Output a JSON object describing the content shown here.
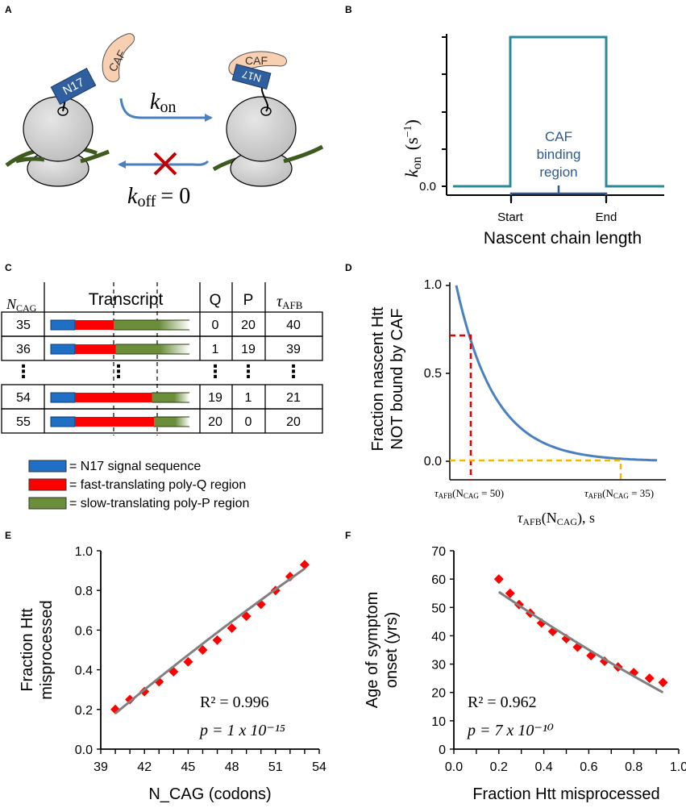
{
  "panels": {
    "A": "A",
    "B": "B",
    "C": "C",
    "D": "D",
    "E": "E",
    "F": "F"
  },
  "panel_a": {
    "n17": "N17",
    "caf": "CAF",
    "kon": "k",
    "kon_sub": "on",
    "koff": "k",
    "koff_sub": "off",
    "koff_eq": "= 0"
  },
  "panel_b": {
    "ylabel_k": "k",
    "ylabel_sub": "on",
    "ylabel_unit": "(s",
    "ylabel_exp": "−1",
    "ylabel_close": ")",
    "ytick": "0.0",
    "region": [
      "CAF",
      "binding",
      "region"
    ],
    "start": "Start",
    "end": "End",
    "xlabel": "Nascent chain length"
  },
  "panel_c": {
    "headers": {
      "n": "N",
      "n_sub": "CAG",
      "transcript": "Transcript",
      "q": "Q",
      "p": "P",
      "tau": "τ",
      "tau_sub": "AFB"
    },
    "rows": [
      {
        "n": "35",
        "q": "0",
        "p": "20",
        "t": "40"
      },
      {
        "n": "36",
        "q": "1",
        "p": "19",
        "t": "39"
      },
      {
        "n": "⋮",
        "q": "⋮",
        "p": "⋮",
        "t": "⋮"
      },
      {
        "n": "54",
        "q": "19",
        "p": "1",
        "t": "21"
      },
      {
        "n": "55",
        "q": "20",
        "p": "0",
        "t": "20"
      }
    ],
    "legend": [
      {
        "label": "= N17 signal sequence",
        "color": "#1f6fc5"
      },
      {
        "label": "= fast-translating poly-Q region",
        "color": "#ff0000"
      },
      {
        "label": "= slow-translating poly-P region",
        "color": "#6b8e3a"
      }
    ]
  },
  "panel_d": {
    "ylabel": [
      "Fraction nascent Htt",
      "NOT bound by CAF"
    ],
    "yticks": [
      "1.0",
      "0.5",
      "0.0"
    ],
    "xtick50": "τ",
    "xtick50_sub": "AFB",
    "xtick50_arg": "(N",
    "xtick50_argsub": "CAG",
    "xtick50_val": " = 50)",
    "xtick35_val": " = 35)",
    "xlabel": "τ",
    "xlabel_sub": "AFB",
    "xlabel_arg": "(N",
    "xlabel_argsub": "CAG",
    "xlabel_end": "), s"
  },
  "chart_data": [
    {
      "type": "scatter",
      "title": "",
      "xlabel": "N_CAG (codons)",
      "ylabel": "Fraction Htt misprocessed",
      "xlim": [
        39,
        54
      ],
      "ylim": [
        0,
        1
      ],
      "xticks": [
        "39",
        "42",
        "45",
        "48",
        "51",
        "54"
      ],
      "yticks": [
        "0.0",
        "0.2",
        "0.4",
        "0.6",
        "0.8",
        "1.0"
      ],
      "x": [
        40,
        41,
        42,
        43,
        44,
        45,
        46,
        47,
        48,
        49,
        50,
        51,
        52,
        53
      ],
      "y": [
        0.2,
        0.25,
        0.29,
        0.34,
        0.39,
        0.44,
        0.5,
        0.55,
        0.61,
        0.67,
        0.73,
        0.8,
        0.87,
        0.93
      ],
      "fit": {
        "x": [
          40,
          53
        ],
        "y": [
          0.18,
          0.91
        ]
      },
      "annotation": [
        "R² = 0.996",
        "p = 1 x 10⁻¹⁵"
      ]
    },
    {
      "type": "scatter",
      "title": "",
      "xlabel": "Fraction Htt misprocessed",
      "ylabel": "Age of symptom onset (yrs)",
      "xlim": [
        0,
        1
      ],
      "ylim": [
        0,
        70
      ],
      "xticks": [
        "0.0",
        "0.2",
        "0.4",
        "0.6",
        "0.8",
        "1.0"
      ],
      "yticks": [
        "0",
        "10",
        "20",
        "30",
        "40",
        "50",
        "60",
        "70"
      ],
      "x": [
        0.2,
        0.25,
        0.29,
        0.34,
        0.39,
        0.44,
        0.5,
        0.55,
        0.61,
        0.67,
        0.73,
        0.8,
        0.87,
        0.93
      ],
      "y": [
        60,
        55,
        51,
        48,
        44.5,
        41.5,
        39,
        36,
        33,
        31,
        29,
        27,
        25,
        23.5
      ],
      "fit": {
        "x": [
          0.2,
          0.93
        ],
        "y": [
          55.5,
          20
        ]
      },
      "annotation": [
        "R² = 0.962",
        "p = 7 x 10⁻¹⁰"
      ]
    }
  ]
}
